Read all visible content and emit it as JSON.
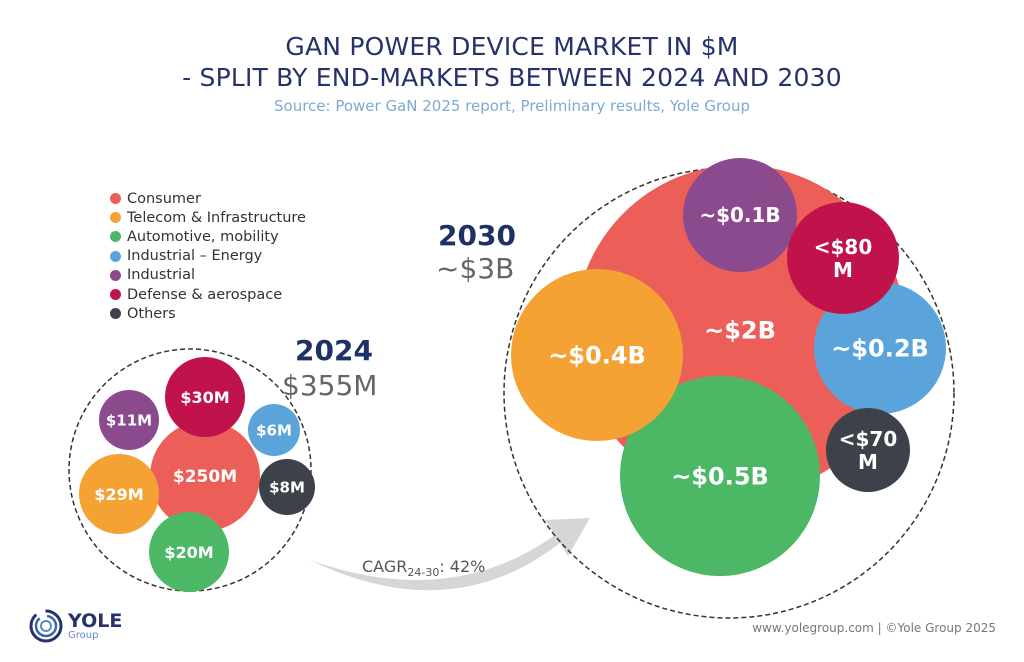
{
  "colors": {
    "title": "#26326a",
    "consumer": "#ec5f59",
    "telecom": "#f4a234",
    "automotive": "#4cb865",
    "industrial_energy": "#5ba4db",
    "industrial": "#8b4a8e",
    "defense": "#c0134c",
    "others": "#3d4149"
  },
  "chart_data": {
    "type": "bubble",
    "title": "GAN POWER DEVICE MARKET IN $M",
    "subtitle": "- SPLIT BY END-MARKETS BETWEEN 2024 AND 2030",
    "source": "Source: Power GaN 2025 report, Preliminary results, Yole Group",
    "legend": [
      "Consumer",
      "Telecom & Infrastructure",
      "Automotive, mobility",
      "Industrial – Energy",
      "Industrial",
      "Defense & aerospace",
      "Others"
    ],
    "legend_placement": "left",
    "years": [
      {
        "year": "2024",
        "total": "$355M",
        "series": [
          {
            "segment": "Consumer",
            "label": "$250M",
            "value": 250
          },
          {
            "segment": "Defense & aerospace",
            "label": "$30M",
            "value": 30
          },
          {
            "segment": "Telecom & Infrastructure",
            "label": "$29M",
            "value": 29
          },
          {
            "segment": "Automotive, mobility",
            "label": "$20M",
            "value": 20
          },
          {
            "segment": "Industrial",
            "label": "$11M",
            "value": 11
          },
          {
            "segment": "Others",
            "label": "$8M",
            "value": 8
          },
          {
            "segment": "Industrial – Energy",
            "label": "$6M",
            "value": 6
          }
        ]
      },
      {
        "year": "2030",
        "total": "~$3B",
        "series": [
          {
            "segment": "Consumer",
            "label": "~$2B",
            "value": 2000
          },
          {
            "segment": "Automotive, mobility",
            "label": "~$0.5B",
            "value": 500
          },
          {
            "segment": "Telecom & Infrastructure",
            "label": "~$0.4B",
            "value": 400
          },
          {
            "segment": "Industrial – Energy",
            "label": "~$0.2B",
            "value": 200
          },
          {
            "segment": "Industrial",
            "label": "~$0.1B",
            "value": 100
          },
          {
            "segment": "Defense & aerospace",
            "label": "<$80 M",
            "value": 80
          },
          {
            "segment": "Others",
            "label": "<$70 M",
            "value": 70
          }
        ]
      }
    ],
    "cagr": {
      "label": "CAGR",
      "sub": "24-30",
      "value": ": 42%"
    }
  },
  "footer": {
    "credit": "www.yolegroup.com | ©Yole Group 2025",
    "logo_name": "YOLE",
    "logo_sub": "Group"
  }
}
